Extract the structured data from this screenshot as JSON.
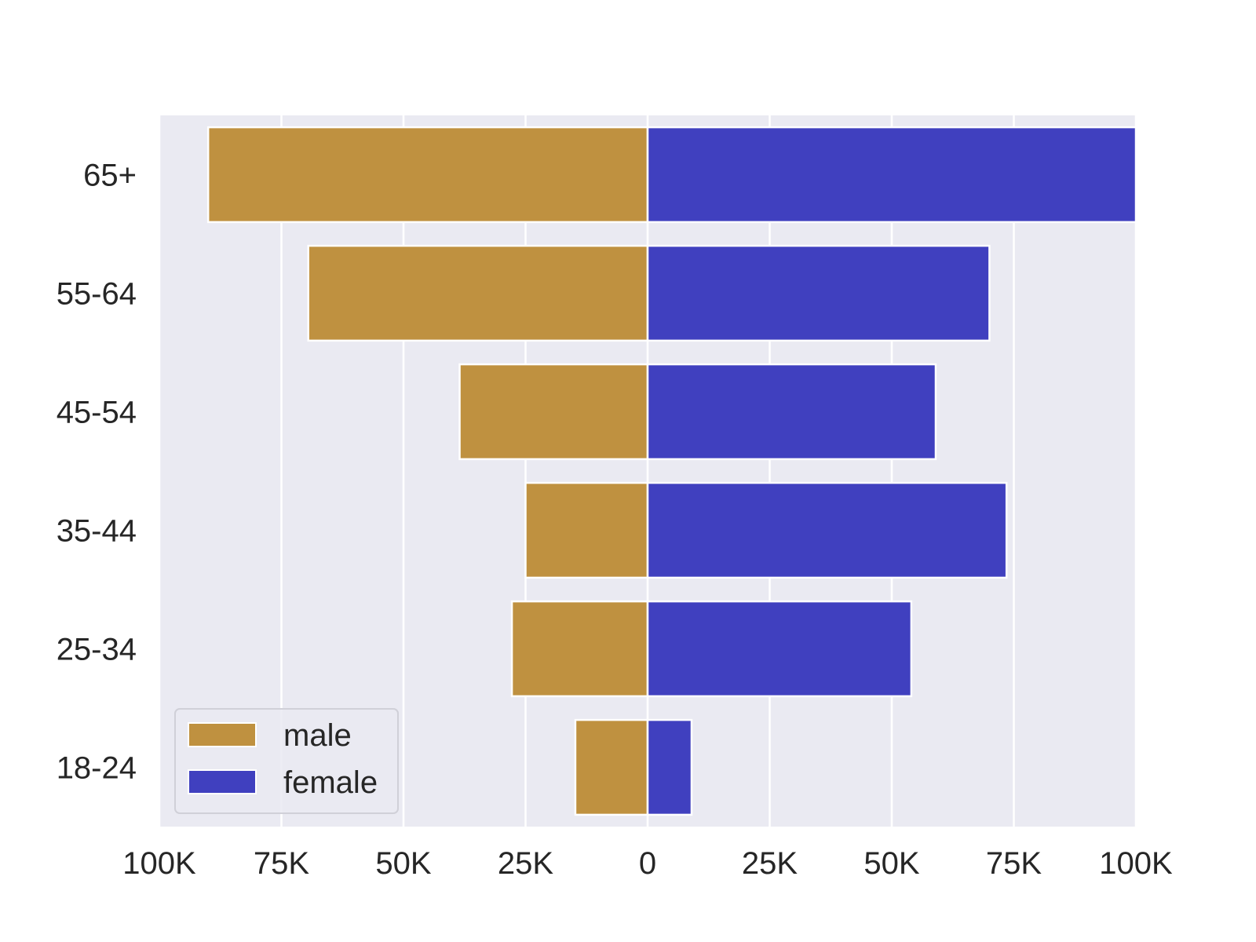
{
  "chart_data": {
    "type": "bar",
    "orientation": "horizontal",
    "layout": "population-pyramid",
    "title": "",
    "xlabel": "",
    "ylabel": "",
    "categories": [
      "65+",
      "55-64",
      "45-54",
      "35-44",
      "25-34",
      "18-24"
    ],
    "series": [
      {
        "name": "male",
        "side": "left",
        "color": "#bf9140",
        "values": [
          90000,
          69500,
          38500,
          25000,
          27800,
          14800
        ]
      },
      {
        "name": "female",
        "side": "right",
        "color": "#4040bf",
        "values": [
          100000,
          70000,
          59000,
          73500,
          54000,
          9000
        ]
      }
    ],
    "xlim": [
      -100000,
      100000
    ],
    "xticks": [
      -100000,
      -75000,
      -50000,
      -25000,
      0,
      25000,
      50000,
      75000,
      100000
    ],
    "xtick_labels": [
      "100K",
      "75K",
      "50K",
      "25K",
      "0",
      "25K",
      "50K",
      "75K",
      "100K"
    ],
    "grid": true,
    "grid_axis": "x",
    "background": "#eaeaf2",
    "legend": {
      "position": "lower-left",
      "entries": [
        "male",
        "female"
      ]
    }
  }
}
